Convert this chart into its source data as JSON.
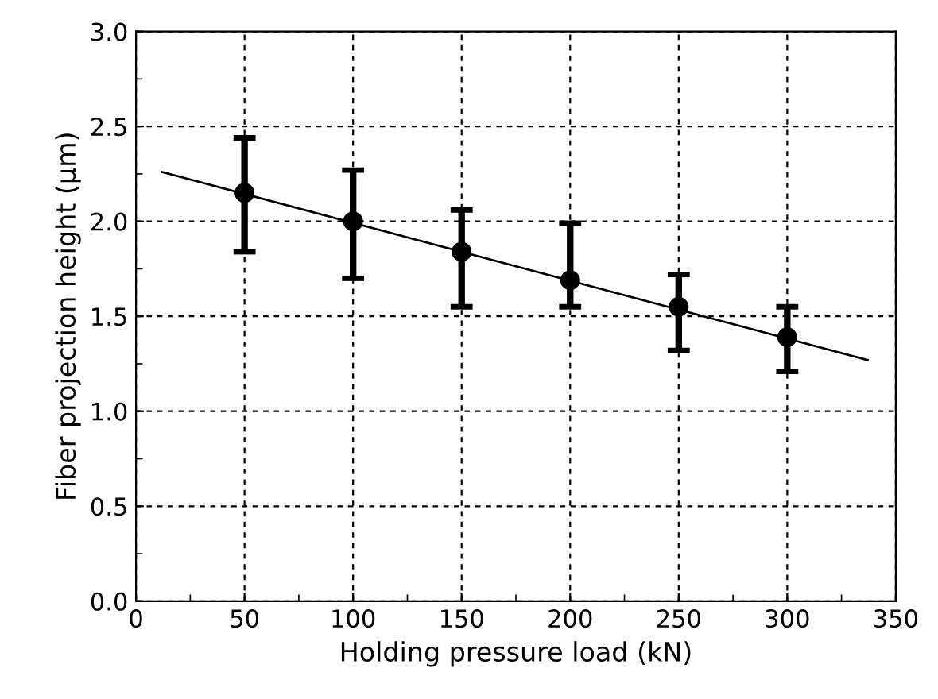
{
  "chart_data": {
    "type": "scatter",
    "xlabel": "Holding pressure load (kN)",
    "ylabel": "Fiber projection height (μm)",
    "xlim": [
      0,
      350
    ],
    "xticks": [
      0,
      50,
      100,
      150,
      200,
      250,
      300,
      350
    ],
    "ylim": [
      0,
      3.0
    ],
    "yticks": [
      {
        "value": 0,
        "label": "0.0"
      },
      0.5,
      {
        "value": 1,
        "label": "1.0"
      },
      1.5,
      {
        "value": 2,
        "label": "2.0"
      },
      2.5,
      {
        "value": 3,
        "label": "3.0"
      }
    ],
    "grid": true,
    "marker": "circle",
    "series": [
      {
        "color": "#000000",
        "x": [
          50,
          100,
          150,
          200,
          250,
          300
        ],
        "values": [
          2.15,
          2.0,
          1.84,
          1.69,
          1.55,
          1.39
        ],
        "errors": [
          [
            1.84,
            2.44
          ],
          [
            1.7,
            2.27
          ],
          [
            1.55,
            2.06
          ],
          [
            1.55,
            1.99
          ],
          [
            1.32,
            1.72
          ],
          [
            1.21,
            1.55
          ]
        ]
      },
      {
        "type": "line",
        "color": "#000000",
        "x": [
          12,
          337
        ],
        "values": [
          2.26,
          1.27
        ],
        "marker": "none"
      }
    ]
  }
}
